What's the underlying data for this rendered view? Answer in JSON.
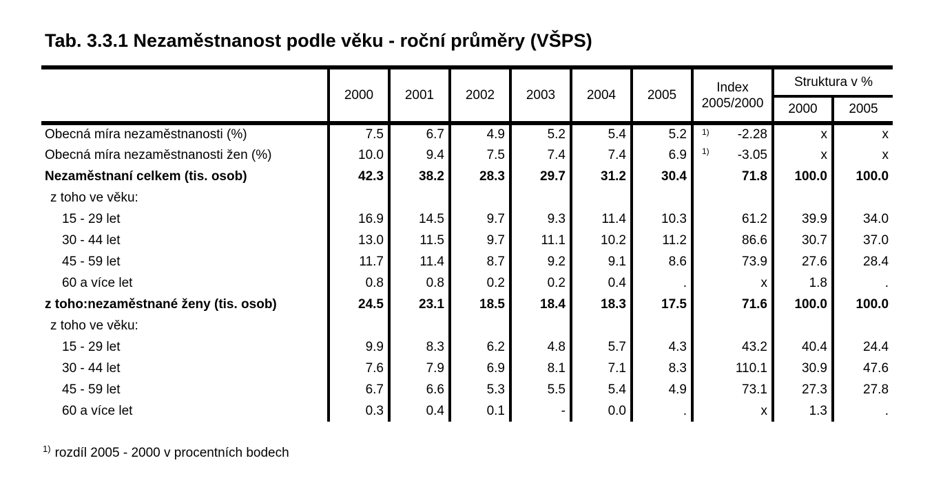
{
  "title": "Tab. 3.3.1 Nezaměstnanost podle věku - roční průměry (VŠPS)",
  "table": {
    "col_headers": {
      "years": [
        "2000",
        "2001",
        "2002",
        "2003",
        "2004",
        "2005"
      ],
      "index_label": "Index",
      "index_sublabel": "2005/2000",
      "struktura_label": "Struktura v %",
      "struktura_years": [
        "2000",
        "2005"
      ]
    },
    "rows": [
      {
        "label": "Obecná míra nezaměstnanosti (%)",
        "bold": false,
        "indent": 0,
        "values": [
          "7.5",
          "6.7",
          "4.9",
          "5.2",
          "5.4",
          "5.2"
        ],
        "index_note": "1)",
        "index": "-2.28",
        "s2000": "x",
        "s2005": "x"
      },
      {
        "label": "Obecná míra nezaměstnanosti žen (%)",
        "bold": false,
        "indent": 0,
        "values": [
          "10.0",
          "9.4",
          "7.5",
          "7.4",
          "7.4",
          "6.9"
        ],
        "index_note": "1)",
        "index": "-3.05",
        "s2000": "x",
        "s2005": "x"
      },
      {
        "label": "Nezaměstnaní celkem (tis. osob)",
        "bold": true,
        "indent": 0,
        "values": [
          "42.3",
          "38.2",
          "28.3",
          "29.7",
          "31.2",
          "30.4"
        ],
        "index_note": "",
        "index": "71.8",
        "s2000": "100.0",
        "s2005": "100.0"
      },
      {
        "label": "z toho ve věku:",
        "bold": false,
        "indent": 1,
        "values": [
          "",
          "",
          "",
          "",
          "",
          ""
        ],
        "index_note": "",
        "index": "",
        "s2000": "",
        "s2005": ""
      },
      {
        "label": "15 - 29 let",
        "bold": false,
        "indent": 2,
        "values": [
          "16.9",
          "14.5",
          "9.7",
          "9.3",
          "11.4",
          "10.3"
        ],
        "index_note": "",
        "index": "61.2",
        "s2000": "39.9",
        "s2005": "34.0"
      },
      {
        "label": "30 - 44 let",
        "bold": false,
        "indent": 2,
        "values": [
          "13.0",
          "11.5",
          "9.7",
          "11.1",
          "10.2",
          "11.2"
        ],
        "index_note": "",
        "index": "86.6",
        "s2000": "30.7",
        "s2005": "37.0"
      },
      {
        "label": "45 - 59 let",
        "bold": false,
        "indent": 2,
        "values": [
          "11.7",
          "11.4",
          "8.7",
          "9.2",
          "9.1",
          "8.6"
        ],
        "index_note": "",
        "index": "73.9",
        "s2000": "27.6",
        "s2005": "28.4"
      },
      {
        "label": "60 a více let",
        "bold": false,
        "indent": 2,
        "values": [
          "0.8",
          "0.8",
          "0.2",
          "0.2",
          "0.4",
          "."
        ],
        "index_note": "",
        "index": "x",
        "s2000": "1.8",
        "s2005": "."
      },
      {
        "label": "z toho:nezaměstnané ženy (tis. osob)",
        "bold": true,
        "indent": 0,
        "values": [
          "24.5",
          "23.1",
          "18.5",
          "18.4",
          "18.3",
          "17.5"
        ],
        "index_note": "",
        "index": "71.6",
        "s2000": "100.0",
        "s2005": "100.0"
      },
      {
        "label": "z toho ve věku:",
        "bold": false,
        "indent": 1,
        "values": [
          "",
          "",
          "",
          "",
          "",
          ""
        ],
        "index_note": "",
        "index": "",
        "s2000": "",
        "s2005": ""
      },
      {
        "label": "15 - 29 let",
        "bold": false,
        "indent": 2,
        "values": [
          "9.9",
          "8.3",
          "6.2",
          "4.8",
          "5.7",
          "4.3"
        ],
        "index_note": "",
        "index": "43.2",
        "s2000": "40.4",
        "s2005": "24.4"
      },
      {
        "label": "30 - 44 let",
        "bold": false,
        "indent": 2,
        "values": [
          "7.6",
          "7.9",
          "6.9",
          "8.1",
          "7.1",
          "8.3"
        ],
        "index_note": "",
        "index": "110.1",
        "s2000": "30.9",
        "s2005": "47.6"
      },
      {
        "label": "45 - 59 let",
        "bold": false,
        "indent": 2,
        "values": [
          "6.7",
          "6.6",
          "5.3",
          "5.5",
          "5.4",
          "4.9"
        ],
        "index_note": "",
        "index": "73.1",
        "s2000": "27.3",
        "s2005": "27.8"
      },
      {
        "label": "60 a více let",
        "bold": false,
        "indent": 2,
        "values": [
          "0.3",
          "0.4",
          "0.1",
          "-",
          "0.0",
          "."
        ],
        "index_note": "",
        "index": "x",
        "s2000": "1.3",
        "s2005": "."
      }
    ]
  },
  "footnote": {
    "marker": "1)",
    "text": "rozdíl 2005 - 2000 v procentních bodech"
  }
}
